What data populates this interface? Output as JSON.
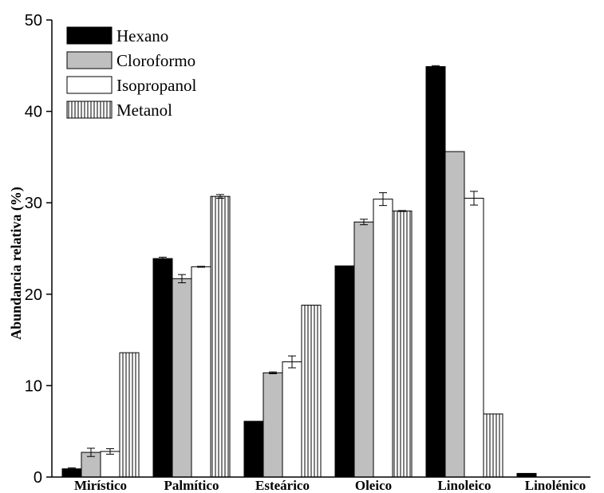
{
  "chart_data": {
    "type": "bar",
    "ylabel": "Abundancia relativa (%)",
    "xlabel": "",
    "ylim": [
      0,
      50
    ],
    "yticks": [
      0,
      10,
      20,
      30,
      40,
      50
    ],
    "grid": false,
    "legend_position": "top-left",
    "categories": [
      "Mirístico",
      "Palmítico",
      "Esteárico",
      "Oleico",
      "Linoleico",
      "Linolénico"
    ],
    "series": [
      {
        "name": "Hexano",
        "fill": "#000000",
        "pattern": "solid",
        "values": [
          0.9,
          23.9,
          6.1,
          23.1,
          44.9,
          0.4
        ],
        "errors": [
          0.1,
          0.15,
          0,
          0,
          0.1,
          0
        ]
      },
      {
        "name": "Cloroformo",
        "fill": "#bfbfbf",
        "pattern": "solid",
        "values": [
          2.7,
          21.7,
          11.4,
          27.9,
          35.6,
          0
        ],
        "errors": [
          0.45,
          0.45,
          0.1,
          0.3,
          0,
          0
        ]
      },
      {
        "name": "Isopropanol",
        "fill": "#ffffff",
        "pattern": "solid",
        "values": [
          2.8,
          23.0,
          12.6,
          30.4,
          30.5,
          0
        ],
        "errors": [
          0.3,
          0.05,
          0.65,
          0.7,
          0.75,
          0
        ]
      },
      {
        "name": "Metanol",
        "fill": "#ffffff",
        "pattern": "vertical-lines",
        "values": [
          13.6,
          30.7,
          18.8,
          29.1,
          6.9,
          0
        ],
        "errors": [
          0,
          0.2,
          0,
          0.05,
          0,
          0
        ]
      }
    ]
  }
}
